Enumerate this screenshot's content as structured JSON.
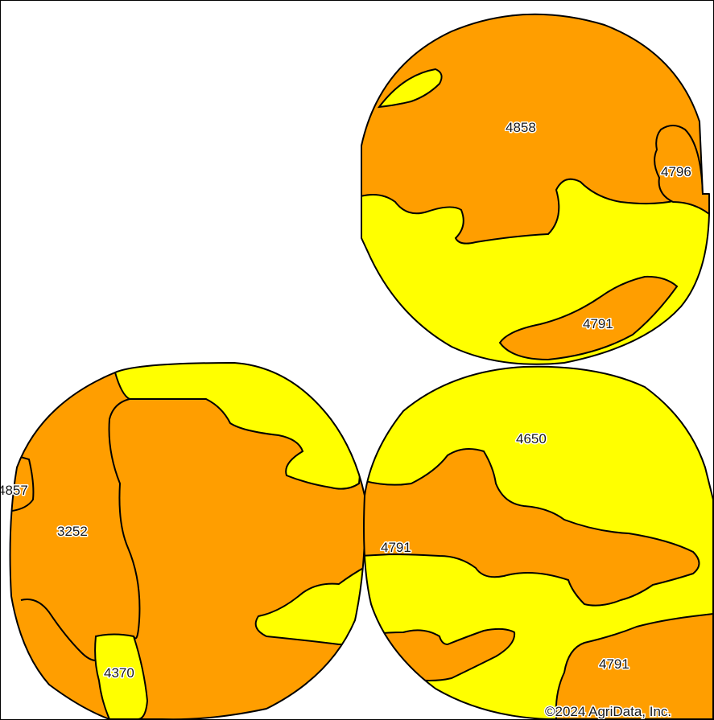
{
  "colors": {
    "orange": "#ff9e00",
    "yellow": "#ffff00",
    "border": "#000000",
    "background": "#ffffff"
  },
  "soil_labels": {
    "top_4858": "4858",
    "top_4796": "4796",
    "top_4791": "4791",
    "left_4857": "4857",
    "left_3252": "3252",
    "left_4370": "4370",
    "right_4650": "4650",
    "right_4791_a": "4791",
    "right_4791_b": "4791"
  },
  "copyright": "©2024 AgriData, Inc."
}
